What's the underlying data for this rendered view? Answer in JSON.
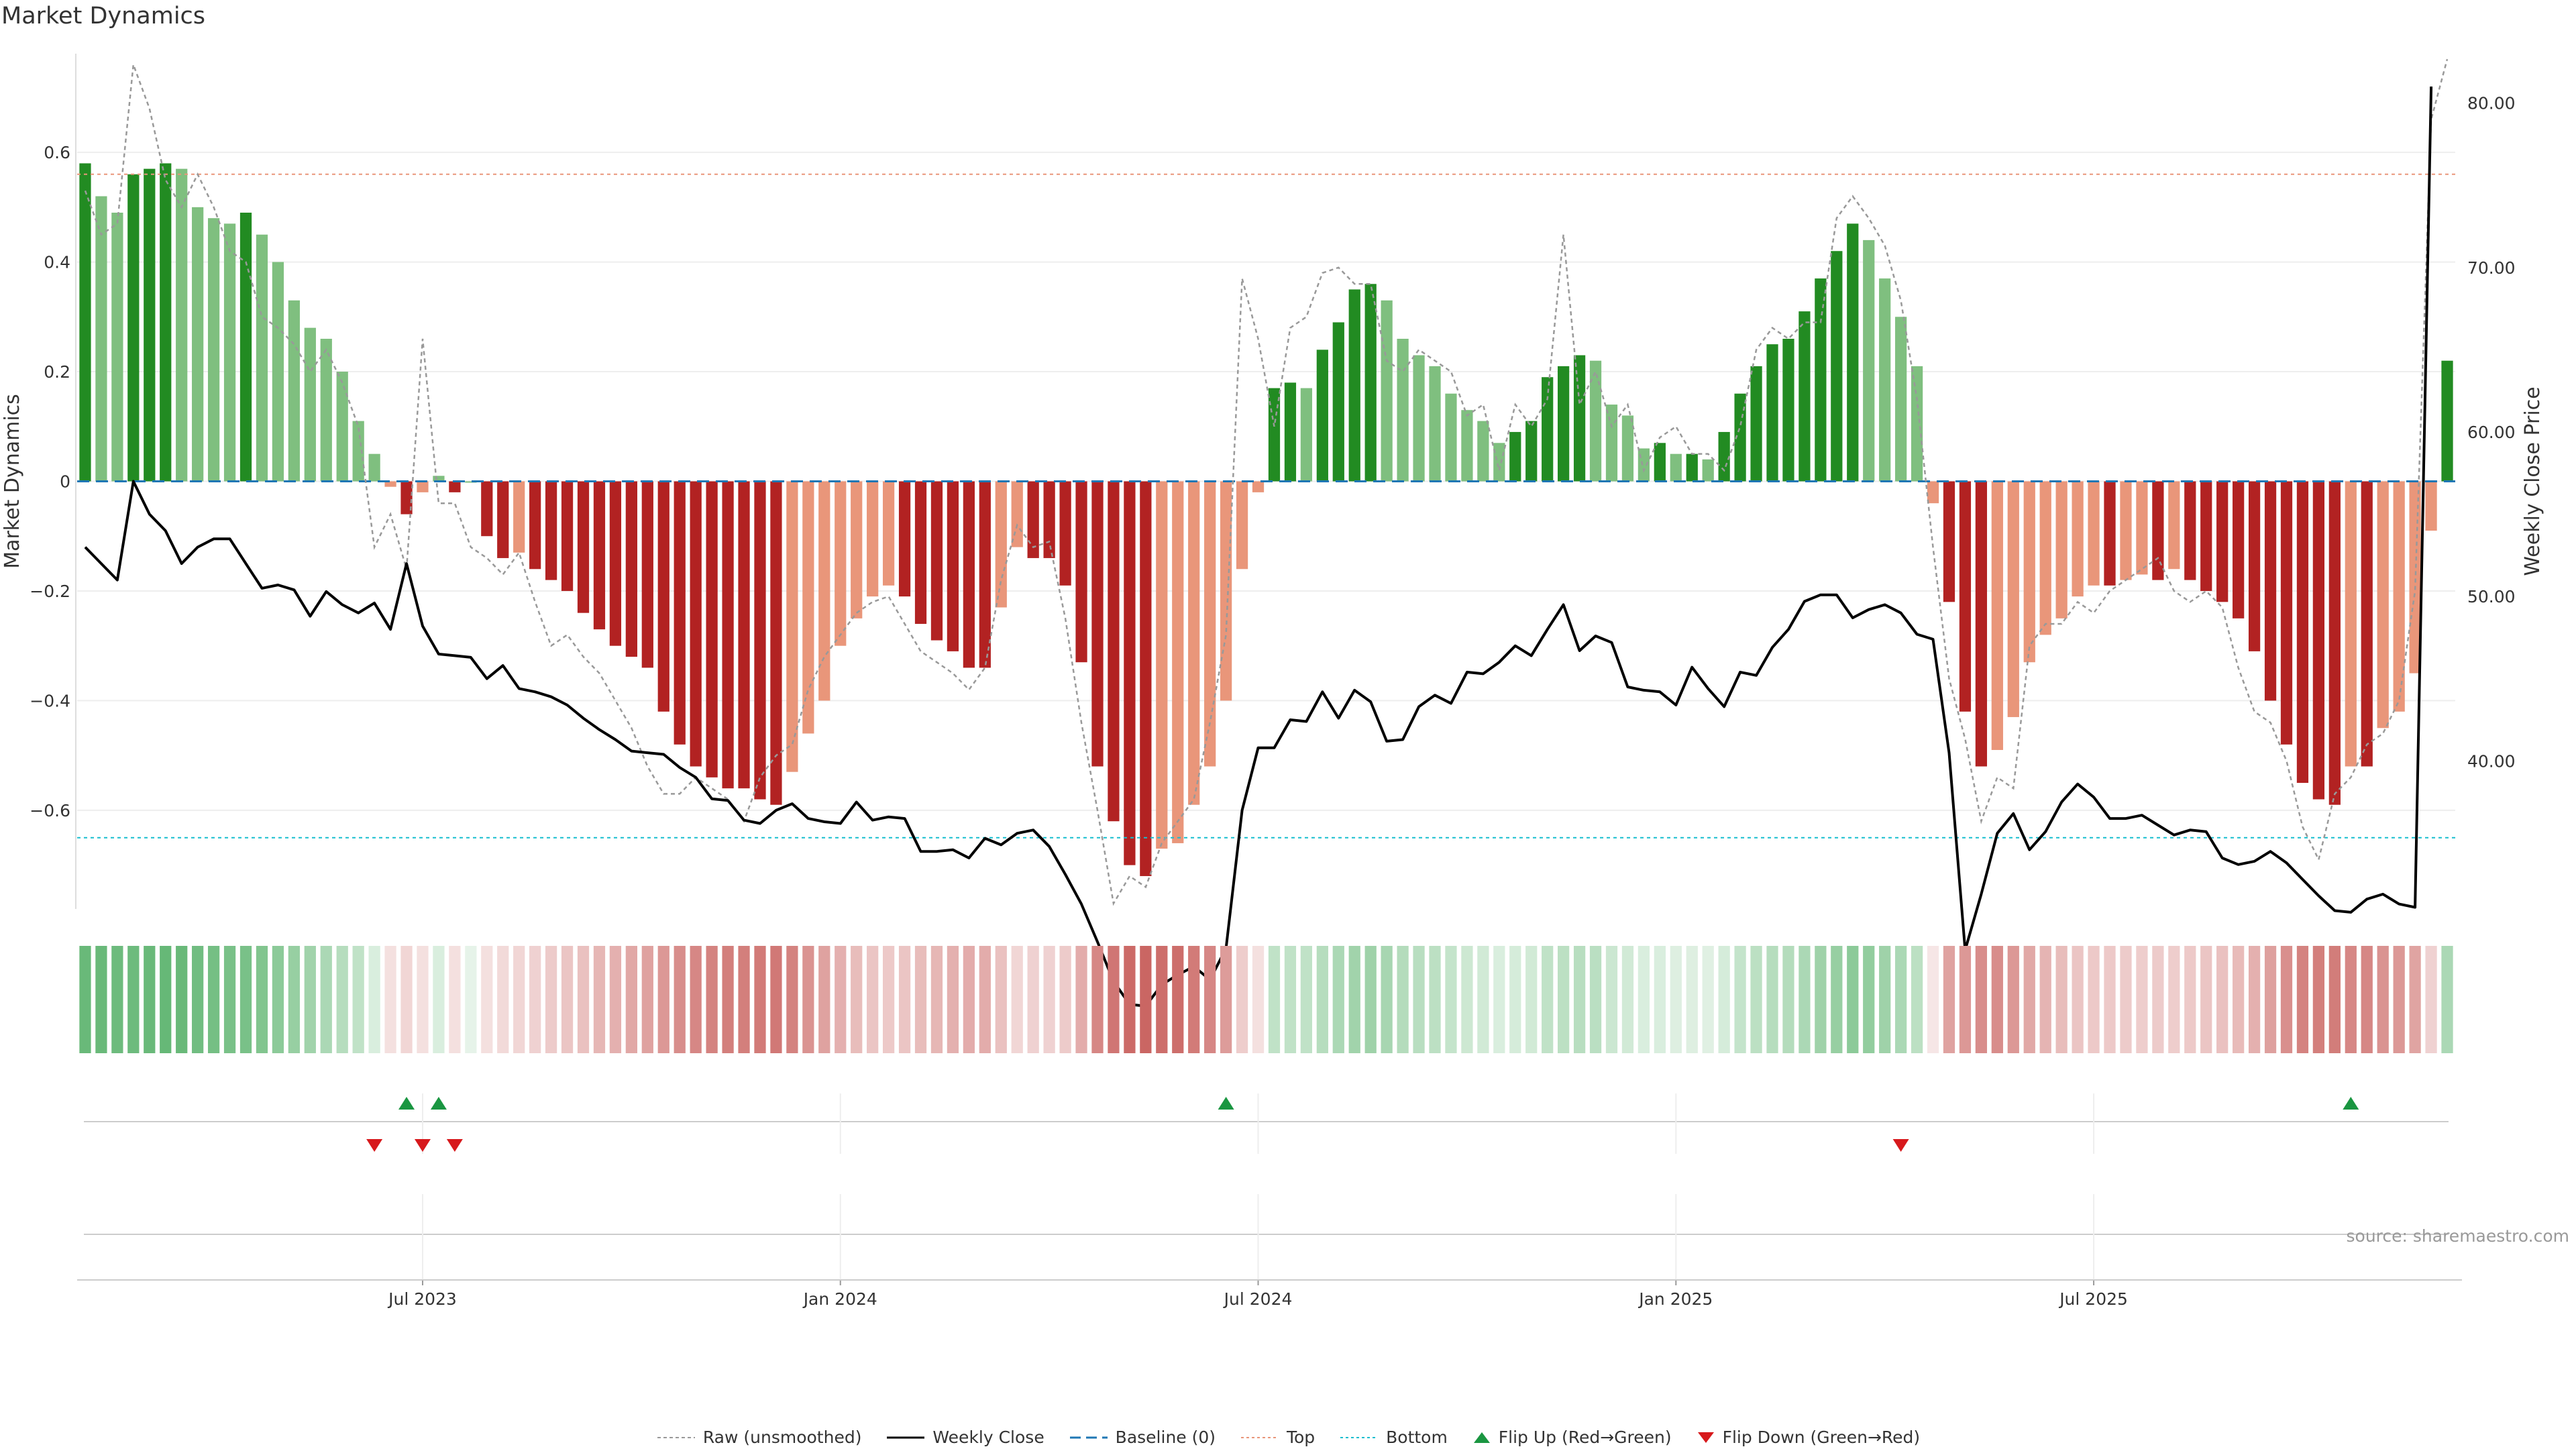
{
  "header": {
    "title": "Market Dynamics"
  },
  "source_text": "source: sharemaestro.com",
  "legend": [
    {
      "key": "raw",
      "label": "Raw (unsmoothed)"
    },
    {
      "key": "close",
      "label": "Weekly Close"
    },
    {
      "key": "baseline",
      "label": "Baseline (0)"
    },
    {
      "key": "top",
      "label": "Top"
    },
    {
      "key": "bottom",
      "label": "Bottom"
    },
    {
      "key": "flipup",
      "label": "Flip Up (Red→Green)"
    },
    {
      "key": "flipdown",
      "label": "Flip Down (Green→Red)"
    }
  ],
  "colors": {
    "green_strong": "#228B22",
    "green_light": "#7FBF7F",
    "red_strong": "#B22222",
    "red_light": "#E9967A",
    "close_line": "#000000",
    "raw_line": "#999999",
    "baseline": "#1f77b4",
    "top": "#E9967A",
    "bottom": "#17becf",
    "flip_up": "#1a9641",
    "flip_down": "#d7191c"
  },
  "chart_data": {
    "type": "bar",
    "title": "Market Dynamics",
    "ylabel": "Market Dynamics",
    "y2label": "Weekly Close Price",
    "ylim": [
      -0.78,
      0.78
    ],
    "y2lim": [
      31,
      83
    ],
    "yticks": [
      -0.6,
      -0.4,
      -0.2,
      0,
      0.2,
      0.4,
      0.6
    ],
    "yticklabels": [
      "−0.6",
      "−0.4",
      "−0.2",
      "0",
      "0.2",
      "0.4",
      "0.6"
    ],
    "y2ticks": [
      40,
      50,
      60,
      70,
      80
    ],
    "y2ticklabels": [
      "40.00",
      "50.00",
      "60.00",
      "70.00",
      "80.00"
    ],
    "top_level": 0.56,
    "bottom_level": -0.65,
    "xtick_labels": [
      {
        "week": 21,
        "label": "Jul 2023"
      },
      {
        "week": 47,
        "label": "Jan 2024"
      },
      {
        "week": 73,
        "label": "Jul 2024"
      },
      {
        "week": 99,
        "label": "Jan 2025"
      },
      {
        "week": 125,
        "label": "Jul 2025"
      }
    ],
    "bars": [
      0.58,
      0.52,
      0.49,
      0.56,
      0.57,
      0.58,
      0.57,
      0.5,
      0.48,
      0.47,
      0.49,
      0.45,
      0.4,
      0.33,
      0.28,
      0.26,
      0.2,
      0.11,
      0.05,
      -0.01,
      -0.06,
      -0.02,
      0.01,
      -0.02,
      0.0,
      -0.1,
      -0.14,
      -0.13,
      -0.16,
      -0.18,
      -0.2,
      -0.24,
      -0.27,
      -0.3,
      -0.32,
      -0.34,
      -0.42,
      -0.48,
      -0.52,
      -0.54,
      -0.56,
      -0.56,
      -0.58,
      -0.59,
      -0.53,
      -0.46,
      -0.4,
      -0.3,
      -0.25,
      -0.21,
      -0.19,
      -0.21,
      -0.26,
      -0.29,
      -0.31,
      -0.34,
      -0.34,
      -0.23,
      -0.12,
      -0.14,
      -0.14,
      -0.19,
      -0.33,
      -0.52,
      -0.62,
      -0.7,
      -0.72,
      -0.67,
      -0.66,
      -0.59,
      -0.52,
      -0.4,
      -0.16,
      -0.02,
      0.17,
      0.18,
      0.17,
      0.24,
      0.29,
      0.35,
      0.36,
      0.33,
      0.26,
      0.23,
      0.21,
      0.16,
      0.13,
      0.11,
      0.07,
      0.09,
      0.11,
      0.19,
      0.21,
      0.23,
      0.22,
      0.14,
      0.12,
      0.06,
      0.07,
      0.05,
      0.05,
      0.04,
      0.09,
      0.16,
      0.21,
      0.25,
      0.26,
      0.31,
      0.37,
      0.42,
      0.47,
      0.44,
      0.37,
      0.3,
      0.21,
      -0.04,
      -0.22,
      -0.42,
      -0.52,
      -0.49,
      -0.43,
      -0.33,
      -0.28,
      -0.25,
      -0.21,
      -0.19,
      -0.19,
      -0.18,
      -0.17,
      -0.18,
      -0.16,
      -0.18,
      -0.2,
      -0.22,
      -0.25,
      -0.31,
      -0.4,
      -0.48,
      -0.55,
      -0.58,
      -0.59,
      -0.52,
      -0.52,
      -0.45,
      -0.42,
      -0.35,
      -0.09,
      0.22
    ],
    "raw": [
      0.53,
      0.45,
      0.47,
      0.76,
      0.68,
      0.55,
      0.5,
      0.56,
      0.5,
      0.42,
      0.4,
      0.3,
      0.28,
      0.25,
      0.2,
      0.24,
      0.18,
      0.1,
      -0.12,
      -0.06,
      -0.16,
      0.26,
      -0.04,
      -0.04,
      -0.12,
      -0.14,
      -0.17,
      -0.13,
      -0.22,
      -0.3,
      -0.28,
      -0.32,
      -0.35,
      -0.4,
      -0.45,
      -0.52,
      -0.57,
      -0.57,
      -0.54,
      -0.56,
      -0.58,
      -0.62,
      -0.54,
      -0.5,
      -0.48,
      -0.38,
      -0.32,
      -0.28,
      -0.24,
      -0.22,
      -0.21,
      -0.26,
      -0.31,
      -0.33,
      -0.35,
      -0.38,
      -0.34,
      -0.18,
      -0.08,
      -0.12,
      -0.11,
      -0.25,
      -0.44,
      -0.6,
      -0.77,
      -0.72,
      -0.74,
      -0.66,
      -0.62,
      -0.58,
      -0.44,
      -0.28,
      0.37,
      0.26,
      0.1,
      0.28,
      0.3,
      0.38,
      0.39,
      0.36,
      0.36,
      0.22,
      0.2,
      0.24,
      0.22,
      0.2,
      0.12,
      0.14,
      0.02,
      0.14,
      0.1,
      0.15,
      0.45,
      0.14,
      0.2,
      0.1,
      0.14,
      0.02,
      0.08,
      0.1,
      0.05,
      0.05,
      0.02,
      0.1,
      0.24,
      0.28,
      0.26,
      0.29,
      0.29,
      0.48,
      0.52,
      0.48,
      0.43,
      0.33,
      0.15,
      -0.12,
      -0.36,
      -0.47,
      -0.62,
      -0.54,
      -0.56,
      -0.3,
      -0.26,
      -0.26,
      -0.22,
      -0.24,
      -0.2,
      -0.18,
      -0.16,
      -0.14,
      -0.2,
      -0.22,
      -0.2,
      -0.23,
      -0.34,
      -0.42,
      -0.44,
      -0.51,
      -0.63,
      -0.69,
      -0.57,
      -0.54,
      -0.48,
      -0.46,
      -0.4,
      -0.2,
      0.66,
      0.77
    ],
    "close": [
      53.0,
      52.0,
      51.0,
      57.0,
      55.0,
      54.0,
      52.0,
      53.0,
      53.5,
      53.5,
      52.0,
      50.5,
      50.7,
      50.4,
      48.8,
      50.3,
      49.5,
      49.0,
      49.6,
      48.0,
      52.0,
      48.2,
      46.5,
      46.4,
      46.3,
      45.0,
      45.8,
      44.4,
      44.2,
      43.9,
      43.4,
      42.6,
      41.9,
      41.3,
      40.6,
      40.5,
      40.4,
      39.6,
      39.0,
      37.7,
      37.6,
      36.4,
      36.2,
      37.0,
      37.4,
      36.5,
      36.3,
      36.2,
      37.5,
      36.4,
      36.6,
      36.5,
      34.5,
      34.5,
      34.6,
      34.1,
      35.3,
      34.9,
      35.6,
      35.8,
      34.8,
      33.1,
      31.3,
      29.0,
      26.6,
      25.2,
      25.1,
      26.4,
      27.0,
      27.5,
      26.7,
      28.6,
      37.0,
      40.8,
      40.8,
      42.5,
      42.4,
      44.2,
      42.6,
      44.3,
      43.6,
      41.2,
      41.3,
      43.3,
      44.0,
      43.5,
      45.4,
      45.3,
      46.0,
      47.0,
      46.4,
      48.0,
      49.5,
      46.7,
      47.6,
      47.2,
      44.5,
      44.3,
      44.2,
      43.4,
      45.7,
      44.4,
      43.3,
      45.4,
      45.2,
      46.9,
      48.0,
      49.7,
      50.1,
      50.1,
      48.7,
      49.2,
      49.5,
      49.0,
      47.7,
      47.4,
      40.5,
      28.5,
      31.9,
      35.6,
      36.8,
      34.6,
      35.7,
      37.5,
      38.6,
      37.8,
      36.5,
      36.5,
      36.7,
      36.1,
      35.5,
      35.8,
      35.7,
      34.1,
      33.7,
      33.9,
      34.5,
      33.8,
      32.8,
      31.8,
      30.9,
      30.8,
      31.6,
      31.9,
      31.3,
      31.1,
      81.0
    ],
    "heat_intensity": [
      0.72,
      0.72,
      0.7,
      0.7,
      0.72,
      0.73,
      0.72,
      0.68,
      0.66,
      0.64,
      0.64,
      0.6,
      0.55,
      0.5,
      0.45,
      0.4,
      0.35,
      0.3,
      0.18,
      0.15,
      0.2,
      0.15,
      0.18,
      0.15,
      0.12,
      0.15,
      0.18,
      0.2,
      0.22,
      0.25,
      0.28,
      0.3,
      0.35,
      0.38,
      0.42,
      0.45,
      0.5,
      0.55,
      0.58,
      0.6,
      0.62,
      0.62,
      0.64,
      0.65,
      0.6,
      0.52,
      0.45,
      0.38,
      0.32,
      0.28,
      0.26,
      0.28,
      0.32,
      0.35,
      0.38,
      0.4,
      0.4,
      0.3,
      0.2,
      0.22,
      0.22,
      0.25,
      0.4,
      0.58,
      0.66,
      0.72,
      0.74,
      0.7,
      0.7,
      0.64,
      0.58,
      0.48,
      0.24,
      0.15,
      0.3,
      0.3,
      0.3,
      0.35,
      0.4,
      0.45,
      0.46,
      0.42,
      0.36,
      0.34,
      0.32,
      0.28,
      0.24,
      0.22,
      0.18,
      0.2,
      0.22,
      0.3,
      0.32,
      0.34,
      0.33,
      0.25,
      0.22,
      0.18,
      0.18,
      0.16,
      0.16,
      0.15,
      0.2,
      0.28,
      0.32,
      0.35,
      0.36,
      0.4,
      0.46,
      0.5,
      0.55,
      0.52,
      0.46,
      0.4,
      0.32,
      0.12,
      0.45,
      0.5,
      0.55,
      0.55,
      0.5,
      0.42,
      0.36,
      0.32,
      0.28,
      0.26,
      0.26,
      0.25,
      0.24,
      0.25,
      0.24,
      0.26,
      0.28,
      0.3,
      0.33,
      0.38,
      0.46,
      0.54,
      0.6,
      0.62,
      0.63,
      0.58,
      0.58,
      0.52,
      0.5,
      0.44,
      0.22,
      0.4
    ],
    "flip_up_weeks": [
      20,
      22,
      71,
      141
    ],
    "flip_down_weeks": [
      18,
      21,
      23,
      113
    ]
  }
}
